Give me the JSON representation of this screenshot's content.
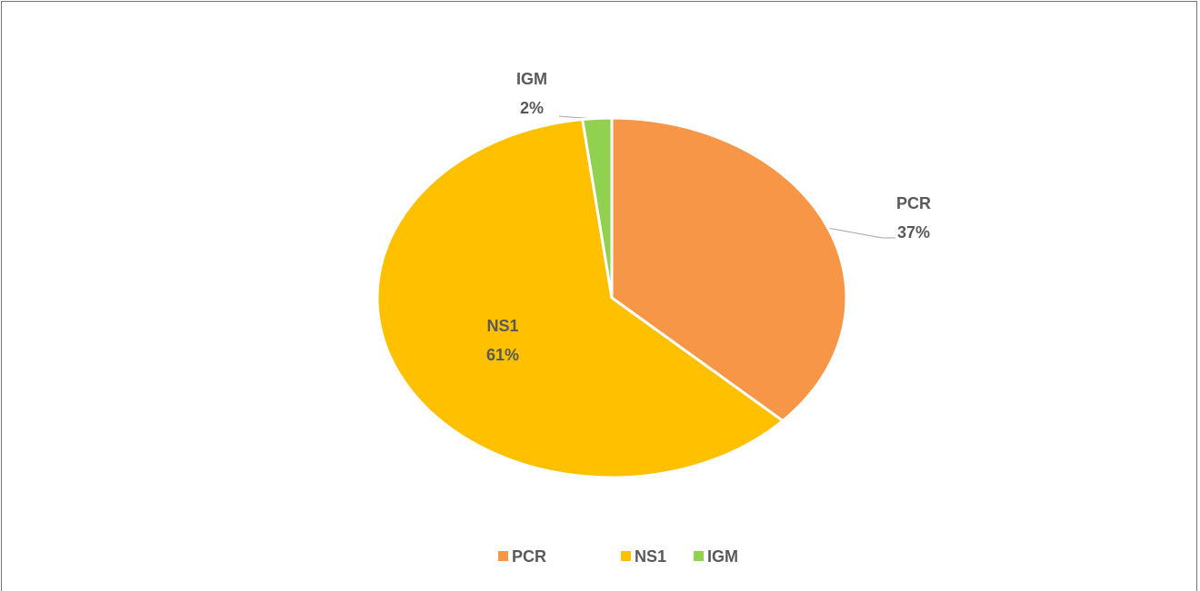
{
  "chart_data": {
    "type": "pie",
    "categories": [
      "PCR",
      "NS1",
      "IGM"
    ],
    "values": [
      37,
      61,
      2
    ],
    "value_labels": [
      "37%",
      "61%",
      "2%"
    ],
    "colors": [
      "#f79646",
      "#ffc000",
      "#92d050"
    ],
    "legend": "bottom"
  }
}
